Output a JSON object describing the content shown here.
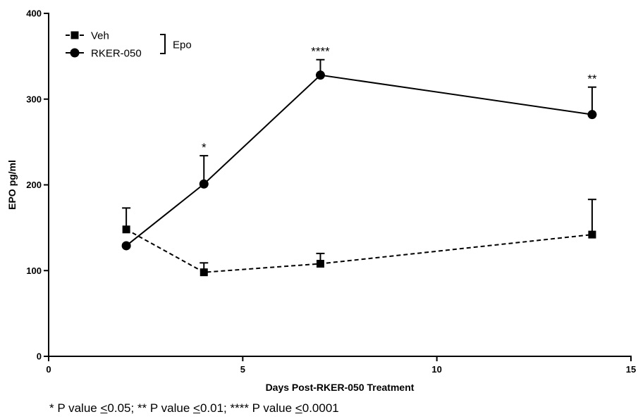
{
  "chart_data": {
    "type": "line",
    "xlabel": "Days Post-RKER-050 Treatment",
    "ylabel": "EPO pg/ml",
    "xlim": [
      0,
      15
    ],
    "ylim": [
      0,
      400
    ],
    "xticks": [
      "0",
      "5",
      "10",
      "15"
    ],
    "yticks": [
      "0",
      "100",
      "200",
      "300",
      "400"
    ],
    "grid": false,
    "legend_position": "top-left",
    "legend_group_label": "Epo",
    "series": [
      {
        "name": "Veh",
        "marker": "square",
        "line_style": "dashed",
        "color": "#000000",
        "points": [
          {
            "x": 2,
            "y": 148,
            "err": 25
          },
          {
            "x": 4,
            "y": 98,
            "err": 11
          },
          {
            "x": 7,
            "y": 108,
            "err": 12
          },
          {
            "x": 14,
            "y": 142,
            "err": 41
          }
        ]
      },
      {
        "name": "RKER-050",
        "marker": "circle",
        "line_style": "solid",
        "color": "#000000",
        "points": [
          {
            "x": 2,
            "y": 129,
            "err": 0
          },
          {
            "x": 4,
            "y": 201,
            "err": 33
          },
          {
            "x": 7,
            "y": 328,
            "err": 18
          },
          {
            "x": 14,
            "y": 282,
            "err": 32
          }
        ]
      }
    ],
    "annotations": [
      {
        "x": 4,
        "y": 234,
        "text": "*"
      },
      {
        "x": 7,
        "y": 346,
        "text": "****"
      },
      {
        "x": 14,
        "y": 314,
        "text": "**"
      }
    ]
  },
  "footnote": {
    "parts": [
      "* P value ",
      "<",
      "0.05; ** P value ",
      "<",
      "0.01; **** P value ",
      "<",
      "0.0001"
    ]
  }
}
